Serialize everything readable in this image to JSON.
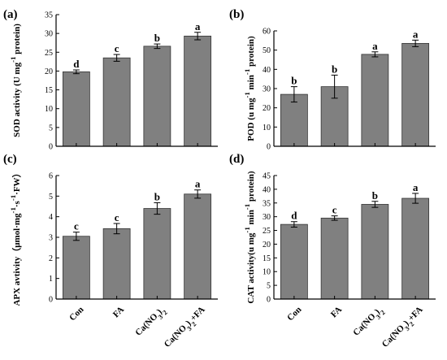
{
  "chart_data": [
    {
      "type": "bar",
      "panel_label": "(a)",
      "categories": [
        "Con",
        "FA",
        "Ca(NO3)2",
        "Ca(NO3)2+FA"
      ],
      "values": [
        19.8,
        23.5,
        26.6,
        29.3
      ],
      "errors": [
        0.5,
        0.9,
        0.6,
        1.0
      ],
      "significance": [
        "d",
        "c",
        "b",
        "a"
      ],
      "ylabel": "SOD activity (U mg-1 protein)",
      "ylim": [
        0,
        35
      ],
      "yticks": [
        0,
        5,
        10,
        15,
        20,
        25,
        30,
        35
      ]
    },
    {
      "type": "bar",
      "panel_label": "(b)",
      "categories": [
        "Con",
        "FA",
        "Ca(NO3)2",
        "Ca(NO3)2+FA"
      ],
      "values": [
        27.0,
        31.0,
        47.8,
        53.5
      ],
      "errors": [
        4.0,
        6.0,
        1.3,
        1.7
      ],
      "significance": [
        "b",
        "b",
        "a",
        "a"
      ],
      "ylabel": "POD (u mg-1 min-1 protein)",
      "ylim": [
        0,
        60
      ],
      "yticks": [
        0,
        10,
        20,
        30,
        40,
        50,
        60
      ]
    },
    {
      "type": "bar",
      "panel_label": "(c)",
      "categories": [
        "Con",
        "FA",
        "Ca(NO3)2",
        "Ca(NO3)2+FA"
      ],
      "values": [
        3.05,
        3.42,
        4.4,
        5.1
      ],
      "errors": [
        0.2,
        0.25,
        0.28,
        0.2
      ],
      "significance": [
        "c",
        "c",
        "b",
        "a"
      ],
      "ylabel": "APX avtivity（μmol·mg-1·s-1·FW）",
      "ylim": [
        0,
        6
      ],
      "yticks": [
        0,
        1,
        2,
        3,
        4,
        5,
        6
      ]
    },
    {
      "type": "bar",
      "panel_label": "(d)",
      "categories": [
        "Con",
        "FA",
        "Ca(NO3)2",
        "Ca(NO3)2+FA"
      ],
      "values": [
        27.2,
        29.5,
        34.5,
        36.7
      ],
      "errors": [
        1.0,
        0.8,
        1.1,
        1.8
      ],
      "significance": [
        "d",
        "c",
        "b",
        "a"
      ],
      "ylabel": "CAT activity(u mg-1 min-1 protein)",
      "ylim": [
        0,
        45
      ],
      "yticks": [
        0,
        5,
        10,
        15,
        20,
        25,
        30,
        35,
        40,
        45
      ]
    }
  ],
  "colors": {
    "bar_fill": "#808080",
    "bar_stroke": "#333333",
    "axis": "#000000"
  }
}
